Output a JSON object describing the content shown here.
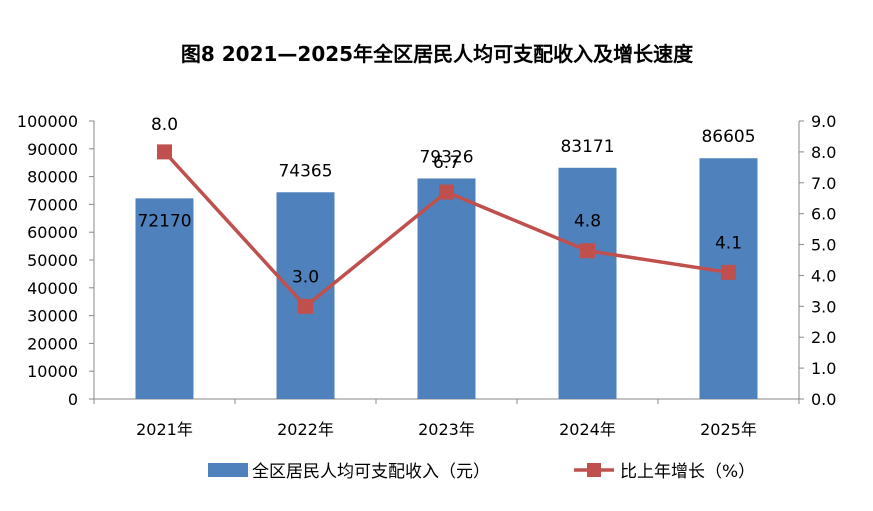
{
  "colors": {
    "bar": "#4F81BD",
    "line": "#C0504D",
    "axis": "#888888",
    "text": "#000000"
  },
  "chart_data": {
    "type": "bar",
    "title": "图8   2021—2025年全区居民人均可支配收入及增长速度",
    "categories": [
      "2021年",
      "2022年",
      "2023年",
      "2024年",
      "2025年"
    ],
    "series": [
      {
        "name": "全区居民人均可支配收入（元）",
        "type": "bar",
        "axis": "left",
        "values": [
          72170,
          74365,
          79326,
          83171,
          86605
        ],
        "labels": [
          "72170",
          "74365",
          "79326",
          "83171",
          "86605"
        ]
      },
      {
        "name": "比上年增长（%）",
        "type": "line",
        "axis": "right",
        "values": [
          8.0,
          3.0,
          6.7,
          4.8,
          4.1
        ],
        "labels": [
          "8.0",
          "3.0",
          "6.7",
          "4.8",
          "4.1"
        ]
      }
    ],
    "ylim_left": [
      0,
      100000
    ],
    "ylim_right": [
      0,
      9
    ],
    "yticks_left": [
      "0",
      "10000",
      "20000",
      "30000",
      "40000",
      "50000",
      "60000",
      "70000",
      "80000",
      "90000",
      "100000"
    ],
    "yticks_right": [
      "0.0",
      "1.0",
      "2.0",
      "3.0",
      "4.0",
      "5.0",
      "6.0",
      "7.0",
      "8.0",
      "9.0"
    ],
    "grid": false,
    "legend_position": "bottom"
  }
}
